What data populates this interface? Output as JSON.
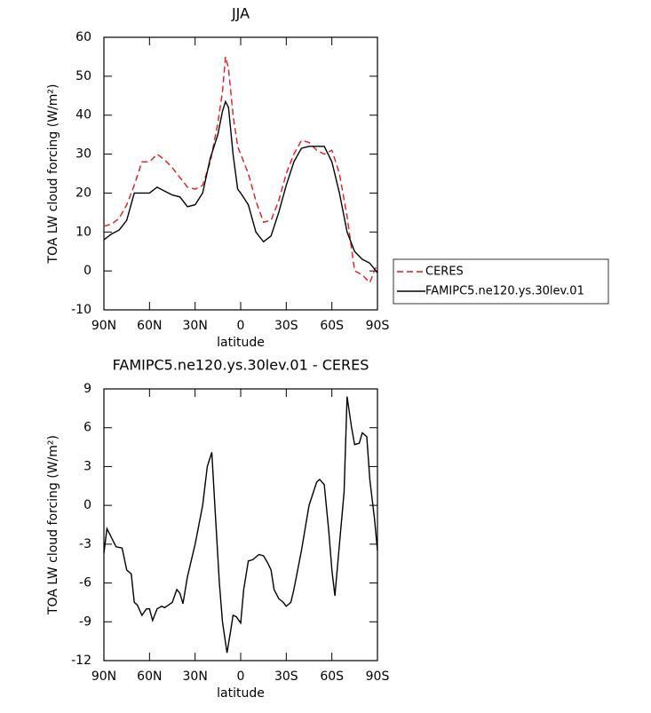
{
  "chart_data": [
    {
      "type": "line",
      "title": "JJA",
      "xlabel": "latitude",
      "ylabel": "TOA LW cloud forcing (W/m²)",
      "x": [
        90,
        85,
        80,
        75,
        70,
        65,
        60,
        55,
        50,
        45,
        40,
        35,
        30,
        25,
        20,
        15,
        12,
        10,
        8,
        5,
        2,
        0,
        -5,
        -10,
        -15,
        -20,
        -25,
        -30,
        -35,
        -40,
        -45,
        -50,
        -55,
        -60,
        -65,
        -70,
        -75,
        -80,
        -85,
        -90
      ],
      "series": [
        {
          "name": "CERES",
          "color": "#e41a1c",
          "linestyle": "dashed",
          "values": [
            11.5,
            12,
            13.5,
            17,
            22,
            28,
            28,
            30,
            28.5,
            26.5,
            24,
            21.5,
            21,
            22,
            28,
            38,
            46,
            55,
            52,
            40,
            32,
            30,
            25,
            18,
            12.5,
            13,
            18,
            25,
            30,
            33.5,
            33,
            31,
            30,
            31,
            25,
            14,
            0,
            -1,
            -3,
            2
          ]
        },
        {
          "name": "FAMIPC5.ne120.ys.30lev.01",
          "color": "#000000",
          "linestyle": "solid",
          "values": [
            8,
            9.5,
            10.5,
            13,
            20,
            20,
            20,
            21.5,
            20.5,
            19.5,
            19,
            16.5,
            17,
            20,
            29,
            35,
            41,
            43.5,
            42,
            30,
            21,
            20,
            17,
            10,
            7.5,
            9,
            15,
            22,
            28,
            31.5,
            32,
            32,
            32,
            28,
            20,
            10,
            5,
            3,
            2,
            -0.5
          ]
        }
      ],
      "xlim": [
        90,
        -90
      ],
      "xticks": [
        {
          "value": 90,
          "label": "90N"
        },
        {
          "value": 60,
          "label": "60N"
        },
        {
          "value": 30,
          "label": "30N"
        },
        0,
        {
          "value": -30,
          "label": "30S"
        },
        {
          "value": -60,
          "label": "60S"
        },
        {
          "value": -90,
          "label": "90S"
        }
      ],
      "ylim": [
        -10,
        60
      ],
      "yticks": [
        -10,
        0,
        10,
        20,
        30,
        40,
        50,
        60
      ],
      "legend": "right"
    },
    {
      "type": "line",
      "title": "FAMIPC5.ne120.ys.30lev.01 - CERES",
      "xlabel": "latitude",
      "ylabel": "TOA LW cloud forcing (W/m²)",
      "x": [
        90,
        88,
        85,
        82,
        78,
        75,
        72,
        70,
        68,
        65,
        62,
        60,
        58,
        55,
        52,
        50,
        45,
        42,
        40,
        38,
        35,
        30,
        25,
        22,
        19,
        17,
        14,
        12,
        9,
        7,
        5,
        3,
        0,
        -2,
        -5,
        -8,
        -10,
        -12,
        -15,
        -18,
        -20,
        -22,
        -25,
        -28,
        -30,
        -33,
        -35,
        -40,
        -45,
        -50,
        -52,
        -55,
        -58,
        -60,
        -62,
        -65,
        -68,
        -70,
        -73,
        -75,
        -78,
        -80,
        -83,
        -85,
        -88,
        -90
      ],
      "values": [
        -3.7,
        -1.8,
        -2.5,
        -3.2,
        -3.3,
        -5,
        -5.3,
        -7.5,
        -7.7,
        -8.5,
        -8,
        -8,
        -8.9,
        -8,
        -7.8,
        -7.9,
        -7.5,
        -6.5,
        -6.8,
        -7.6,
        -5.5,
        -3,
        0,
        3,
        4.1,
        0,
        -6,
        -9,
        -11.4,
        -10,
        -8.5,
        -8.6,
        -9.1,
        -6.5,
        -4.3,
        -4.2,
        -4,
        -3.8,
        -3.9,
        -4.5,
        -5,
        -6.5,
        -7.2,
        -7.5,
        -7.8,
        -7.5,
        -6.5,
        -3.5,
        0,
        1.8,
        2,
        1.6,
        -2,
        -5,
        -7,
        -3,
        1,
        8.4,
        6,
        4.7,
        4.8,
        5.6,
        5.3,
        2,
        -1,
        -3.5
      ],
      "color": "#000000",
      "xlim": [
        90,
        -90
      ],
      "xticks": [
        {
          "value": 90,
          "label": "90N"
        },
        {
          "value": 60,
          "label": "60N"
        },
        {
          "value": 30,
          "label": "30N"
        },
        0,
        {
          "value": -30,
          "label": "30S"
        },
        {
          "value": -60,
          "label": "60S"
        },
        {
          "value": -90,
          "label": "90S"
        }
      ],
      "ylim": [
        -12,
        9
      ],
      "yticks": [
        -12,
        -9,
        -6,
        -3,
        0,
        3,
        6,
        9
      ]
    }
  ]
}
